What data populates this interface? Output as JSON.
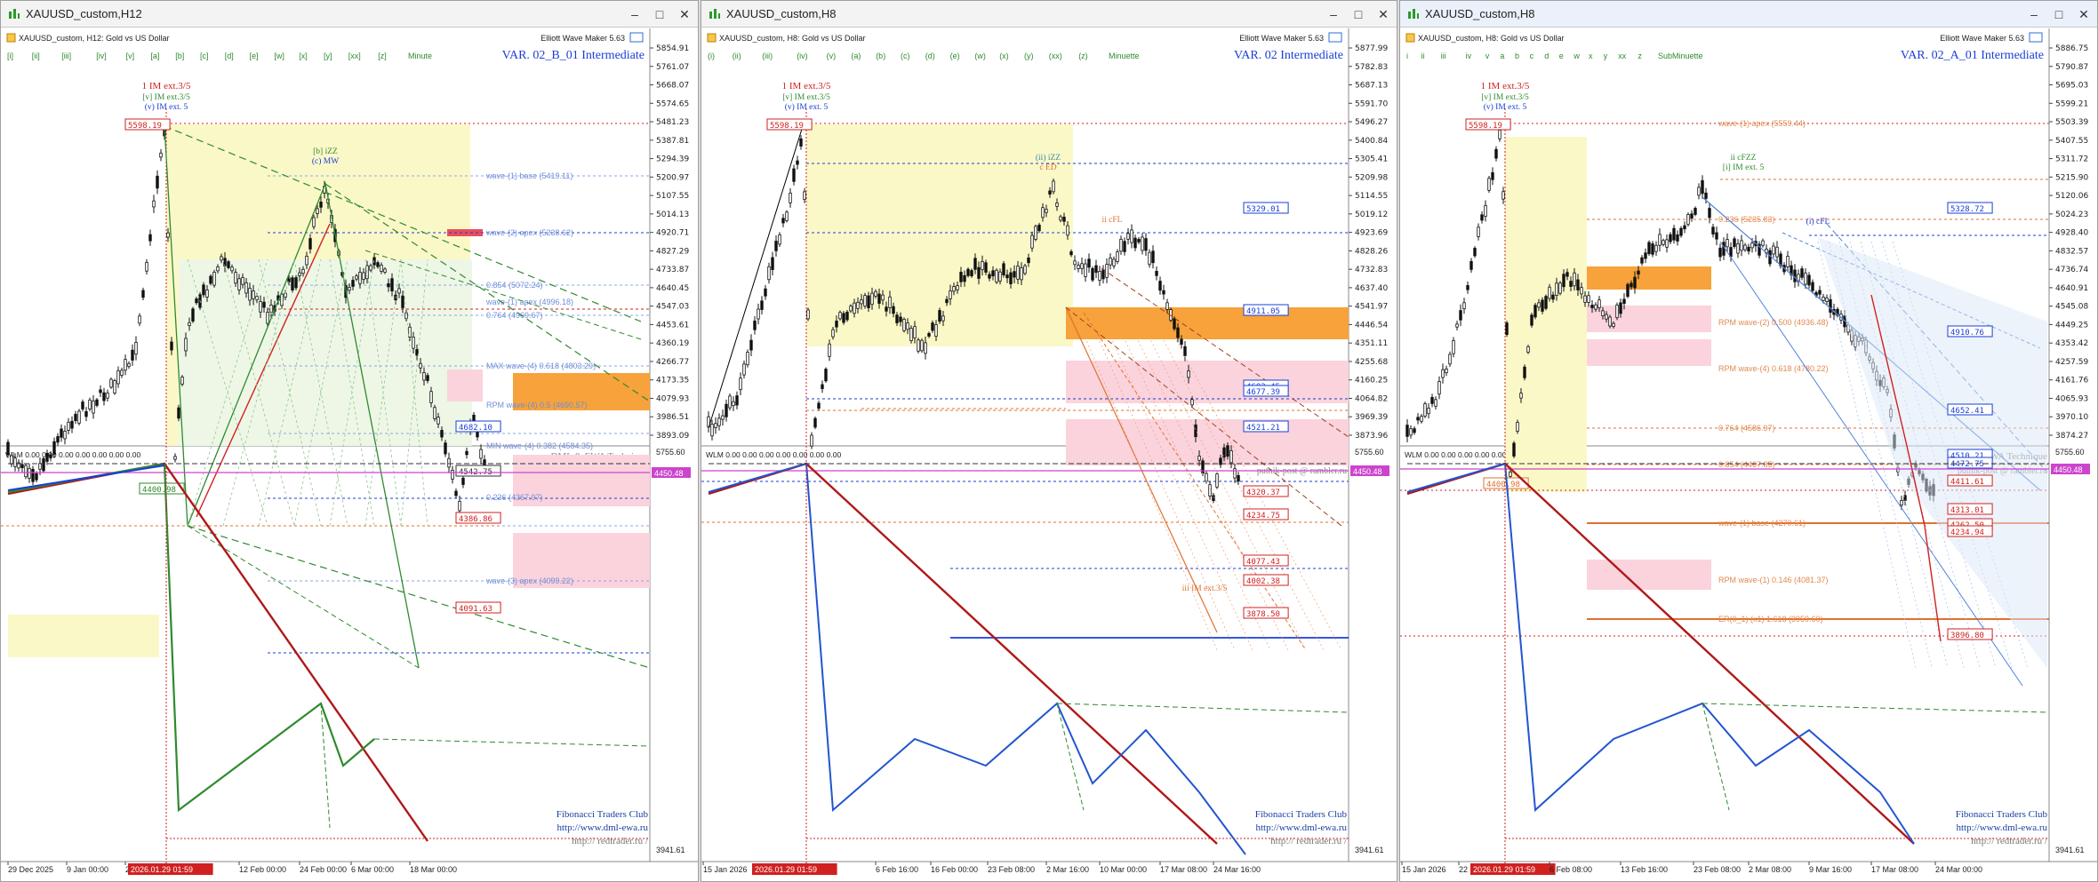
{
  "windows": [
    {
      "title": "XAUUSD_custom,H12",
      "symbol_line": "XAUUSD_custom, H12:  Gold vs US Dollar",
      "tool": "Elliott Wave Maker 5.63",
      "variant": "VAR. 02_B_01 Intermediate",
      "degree_label": "Minute",
      "wave_buttons": [
        "[i]",
        "[ii]",
        "[iii]",
        "[iv]",
        "[v]",
        "[a]",
        "[b]",
        "[c]",
        "[d]",
        "[e]",
        "[w]",
        "[x]",
        "[y]",
        "[xx]",
        "[z]"
      ],
      "price_scale": [
        "5854.91",
        "5761.07",
        "5668.07",
        "5574.65",
        "5481.23",
        "5387.81",
        "5294.39",
        "5200.97",
        "5107.55",
        "5014.13",
        "4920.71",
        "4827.29",
        "4733.87",
        "4640.45",
        "4547.03",
        "4453.61",
        "4360.19",
        "4266.77",
        "4173.35",
        "4079.93",
        "3986.51",
        "3893.09"
      ],
      "current_price": "4450.48",
      "peak_price": "5598.19",
      "low_price": "4400.98",
      "peak_labels": [
        "1 IM ext.3/5",
        "[v] IM ext.3/5",
        "(v) IM ext. 5"
      ],
      "mid_labels": [
        "[b] iZZ",
        "(c) MW"
      ],
      "price_tags": [
        {
          "text": "4682.10",
          "color": "#1a3fd6"
        },
        {
          "text": "4542.75",
          "color": "#333"
        },
        {
          "text": "4386.86",
          "color": "#d02020"
        },
        {
          "text": "4091.63",
          "color": "#d02020"
        }
      ],
      "level_notes": [
        "wave-(1) base (5419.11)",
        "wave-(2) apex (5238.62)",
        "0.854 (5072.24)",
        "wave-(1) apex (4996.18)",
        "0.764 (4969.67)",
        "MAX wave-(4) 0.618 (4803.29)",
        "RPM wave-(4) 0.5 (4690.57)",
        "MIN wave-(4) 0.382 (4584.35)",
        "0.236 (4367.97)",
        "wave-(3) apex (4099.22)"
      ],
      "sub_title": "WLM 0.00 0.00 0.00 0.00 0.00 0.00 0.00",
      "sub_scale_top": "5755.60",
      "sub_scale_bottom": "3941.61",
      "credits": [
        "DML & EWA Technique",
        "putnik-post @ rambler.ru",
        "Fibonacci  Traders  Club",
        "http://www.dml-ewa.ru",
        "http:// redtrader.ru /"
      ],
      "time_axis": [
        "29 Dec 2025",
        "9 Jan 00:00",
        "21 Jan",
        "2026.01.29 01:59",
        "12 Feb 00:00",
        "24 Feb 00:00",
        "6 Mar 00:00",
        "18 Mar 00:00"
      ]
    },
    {
      "title": "XAUUSD_custom,H8",
      "symbol_line": "XAUUSD_custom, H8:  Gold vs US Dollar",
      "tool": "Elliott Wave Maker 5.63",
      "variant": "VAR. 02 Intermediate",
      "degree_label": "Minuette",
      "wave_buttons": [
        "(i)",
        "(ii)",
        "(iii)",
        "(iv)",
        "(v)",
        "(a)",
        "(b)",
        "(c)",
        "(d)",
        "(e)",
        "(w)",
        "(x)",
        "(y)",
        "(xx)",
        "(z)"
      ],
      "price_scale": [
        "5877.99",
        "5782.83",
        "5687.13",
        "5591.70",
        "5496.27",
        "5400.84",
        "5305.41",
        "5209.98",
        "5114.55",
        "5019.12",
        "4923.69",
        "4828.26",
        "4732.83",
        "4637.40",
        "4541.97",
        "4446.54",
        "4351.11",
        "4255.68",
        "4160.25",
        "4064.82",
        "3969.39",
        "3873.96"
      ],
      "current_price": "4450.48",
      "peak_price": "5598.19",
      "peak_labels": [
        "1 IM ext.3/5",
        "[v] IM ext.3/5",
        "(v) IM ext. 5"
      ],
      "mid_labels": [
        "(ii) iZZ",
        "c ED",
        "ii cFL",
        "iii IM ext.3/5"
      ],
      "price_tags": [
        {
          "text": "5329.01",
          "color": "#1a3fd6"
        },
        {
          "text": "4911.05",
          "color": "#1a3fd6"
        },
        {
          "text": "4683.45",
          "color": "#1a3fd6"
        },
        {
          "text": "4677.39",
          "color": "#1a3fd6"
        },
        {
          "text": "4521.21",
          "color": "#1a3fd6"
        },
        {
          "text": "4320.37",
          "color": "#d02020"
        },
        {
          "text": "4234.75",
          "color": "#d02020"
        },
        {
          "text": "4077.43",
          "color": "#d02020"
        },
        {
          "text": "4002.38",
          "color": "#d02020"
        },
        {
          "text": "3878.50",
          "color": "#d02020"
        }
      ],
      "sub_title": "WLM 0.00 0.00 0.00 0.00 0.00 0.00 0.00",
      "sub_scale_top": "5755.60",
      "sub_scale_bottom": "3941.61",
      "credits": [
        "DML & EWA Technique",
        "putnik-post @ rambler.ru",
        "Fibonacci  Traders  Club",
        "http://www.dml-ewa.ru",
        "http:// redtrader.ru /"
      ],
      "time_axis": [
        "15 Jan 2026",
        "2026.01.29 01:59",
        "6 Feb 16:00",
        "16 Feb 00:00",
        "23 Feb 08:00",
        "2 Mar 16:00",
        "10 Mar 00:00",
        "17 Mar 08:00",
        "24 Mar 16:00"
      ]
    },
    {
      "title": "XAUUSD_custom,H8",
      "symbol_line": "XAUUSD_custom, H8:  Gold vs US Dollar",
      "tool": "Elliott Wave Maker 5.63",
      "variant": "VAR. 02_A_01 Intermediate",
      "degree_label": "SubMinuette",
      "wave_buttons": [
        "i",
        "ii",
        "iii",
        "iv",
        "v",
        "a",
        "b",
        "c",
        "d",
        "e",
        "w",
        "x",
        "y",
        "xx",
        "z"
      ],
      "price_scale": [
        "5886.75",
        "5790.87",
        "5695.03",
        "5599.21",
        "5503.39",
        "5407.55",
        "5311.72",
        "5215.90",
        "5120.06",
        "5024.23",
        "4928.40",
        "4832.57",
        "4736.74",
        "4640.91",
        "4545.08",
        "4449.25",
        "4353.42",
        "4257.59",
        "4161.76",
        "4065.93",
        "3970.10",
        "3874.27"
      ],
      "current_price": "4450.48",
      "peak_price": "5598.19",
      "low_price": "4400.98",
      "peak_labels": [
        "1 IM ext.3/5",
        "[v] IM ext.3/5",
        "(v) IM ext. 5"
      ],
      "mid_labels": [
        "ii cFZZ",
        "[i] IM ext. 5",
        "(i) cFL"
      ],
      "price_tags": [
        {
          "text": "5328.72",
          "color": "#1a3fd6"
        },
        {
          "text": "4910.76",
          "color": "#1a3fd6"
        },
        {
          "text": "4652.41",
          "color": "#1a3fd6"
        },
        {
          "text": "4510.21",
          "color": "#1a3fd6"
        },
        {
          "text": "4472.75",
          "color": "#1a3fd6"
        },
        {
          "text": "4411.61",
          "color": "#d02020"
        },
        {
          "text": "4313.01",
          "color": "#d02020"
        },
        {
          "text": "4262.50",
          "color": "#d02020"
        },
        {
          "text": "4234.94",
          "color": "#d02020"
        },
        {
          "text": "3896.80",
          "color": "#d02020"
        }
      ],
      "level_notes": [
        "wave-(1) apex (5559.44)",
        "0.236 (5235.83)",
        "RPM wave-(2) 0.500 (4936.48)",
        "RPM wave-(4) 0.618 (4780.22)",
        "0.764 (4586.97)",
        "0.854 (4467.85)",
        "wave-(1) base (4270.61)",
        "RPM wave-(1) 0.146 (4081.37)",
        "ER(0_1) (x1) 1.618 (3959.60)"
      ],
      "sub_title": "WLM 0.00 0.00 0.00 0.00 0.00 0.00 0.00",
      "sub_scale_top": "5755.60",
      "sub_scale_bottom": "3941.61",
      "credits": [
        "DML & EWA Technique",
        "putnik-post @ rambler.ru",
        "Fibonacci  Traders  Club",
        "http://www.dml-ewa.ru",
        "http:// redtrader.ru /"
      ],
      "time_axis": [
        "15 Jan 2026",
        "22",
        "2026.01.29 01:59",
        "6 Feb 08:00",
        "13 Feb 16:00",
        "23 Feb 08:00",
        "2 Mar 08:00",
        "9 Mar 16:00",
        "17 Mar 08:00",
        "24 Mar 00:00"
      ]
    }
  ],
  "colors": {
    "bull": "#111111",
    "bear": "#111111",
    "current": "#cc44cc",
    "yellow_zone": "#fbf8c8",
    "orange_zone": "#f7a23a",
    "pink_zone": "#fbd3dc",
    "red": "#d02020",
    "blue": "#1a3fd6",
    "green": "#2f8a2f"
  },
  "icons": [
    "chart-app-icon",
    "minimize-icon",
    "maximize-icon",
    "close-icon",
    "price-chart-icon"
  ]
}
